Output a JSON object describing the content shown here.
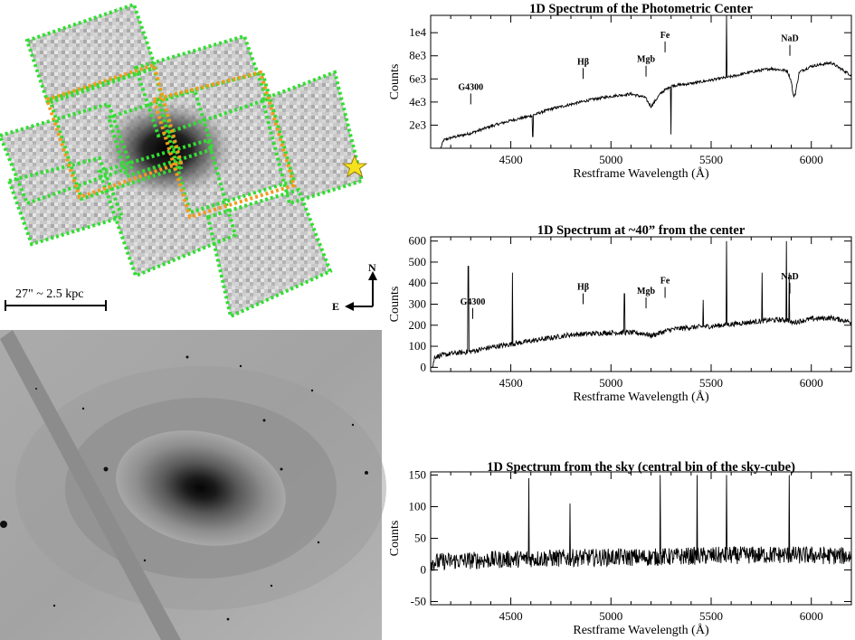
{
  "left_panel": {
    "scale_bar_label": "27\" ~ 2.5 kpc",
    "compass_north": "N",
    "compass_east": "E",
    "star_icon": "star-icon"
  },
  "chart_data": [
    {
      "type": "line",
      "title": "1D Spectrum of the Photometric Center",
      "xlabel": "Restframe Wavelength (Å)",
      "ylabel": "Counts",
      "xlim": [
        4100,
        6200
      ],
      "ylim": [
        0,
        11500
      ],
      "xticks": [
        4500,
        5000,
        5500,
        6000
      ],
      "yticks": [
        2000,
        4000,
        6000,
        8000,
        10000
      ],
      "ytick_labels": [
        "2e3",
        "4e3",
        "6e3",
        "8e3",
        "1e4"
      ],
      "noise_amplitude": 120,
      "continuum": [
        [
          4100,
          0
        ],
        [
          4150,
          0
        ],
        [
          4165,
          700
        ],
        [
          4200,
          900
        ],
        [
          4300,
          1300
        ],
        [
          4400,
          1900
        ],
        [
          4500,
          2400
        ],
        [
          4600,
          2800
        ],
        [
          4700,
          3400
        ],
        [
          4800,
          3800
        ],
        [
          4900,
          4200
        ],
        [
          5000,
          4500
        ],
        [
          5100,
          4700
        ],
        [
          5170,
          4400
        ],
        [
          5200,
          3600
        ],
        [
          5250,
          4800
        ],
        [
          5300,
          5400
        ],
        [
          5400,
          5600
        ],
        [
          5500,
          5900
        ],
        [
          5600,
          6200
        ],
        [
          5700,
          6600
        ],
        [
          5800,
          6900
        ],
        [
          5880,
          6700
        ],
        [
          5900,
          5800
        ],
        [
          5910,
          4500
        ],
        [
          5920,
          4700
        ],
        [
          5940,
          6600
        ],
        [
          6000,
          7100
        ],
        [
          6100,
          7400
        ],
        [
          6200,
          6300
        ]
      ],
      "emission_lines": [
        [
          5577,
          11500
        ],
        [
          4610,
          1000
        ],
        [
          5300,
          1200
        ]
      ],
      "annotations": [
        {
          "label": "G4300",
          "x": 4300,
          "y": 3800
        },
        {
          "label": "Hβ",
          "x": 4861,
          "y": 6000
        },
        {
          "label": "Mgb",
          "x": 5175,
          "y": 6200
        },
        {
          "label": "Fe",
          "x": 5270,
          "y": 8300
        },
        {
          "label": "NaD",
          "x": 5893,
          "y": 8000
        }
      ]
    },
    {
      "type": "line",
      "title": "1D Spectrum at ~40” from the center",
      "xlabel": "Restframe Wavelength (Å)",
      "ylabel": "Counts",
      "xlim": [
        4100,
        6200
      ],
      "ylim": [
        -20,
        620
      ],
      "xticks": [
        4500,
        5000,
        5500,
        6000
      ],
      "yticks": [
        0,
        100,
        200,
        300,
        400,
        500,
        600
      ],
      "ytick_labels": [
        "0",
        "100",
        "200",
        "300",
        "400",
        "500",
        "600"
      ],
      "noise_amplitude": 12,
      "continuum": [
        [
          4100,
          0
        ],
        [
          4110,
          0
        ],
        [
          4120,
          50
        ],
        [
          4200,
          65
        ],
        [
          4300,
          75
        ],
        [
          4400,
          95
        ],
        [
          4500,
          110
        ],
        [
          4600,
          125
        ],
        [
          4700,
          140
        ],
        [
          4800,
          155
        ],
        [
          4900,
          160
        ],
        [
          5000,
          165
        ],
        [
          5100,
          165
        ],
        [
          5170,
          160
        ],
        [
          5200,
          150
        ],
        [
          5250,
          165
        ],
        [
          5300,
          180
        ],
        [
          5400,
          190
        ],
        [
          5500,
          195
        ],
        [
          5600,
          205
        ],
        [
          5700,
          215
        ],
        [
          5800,
          225
        ],
        [
          5880,
          225
        ],
        [
          5900,
          210
        ],
        [
          5920,
          215
        ],
        [
          6000,
          230
        ],
        [
          6100,
          235
        ],
        [
          6200,
          215
        ]
      ],
      "emission_lines": [
        [
          4288,
          480
        ],
        [
          4508,
          450
        ],
        [
          5067,
          350
        ],
        [
          5460,
          320
        ],
        [
          5577,
          600
        ],
        [
          5755,
          450
        ],
        [
          5876,
          600
        ],
        [
          5890,
          450
        ]
      ],
      "annotations": [
        {
          "label": "G4300",
          "x": 4310,
          "y": 230
        },
        {
          "label": "Hβ",
          "x": 4861,
          "y": 300
        },
        {
          "label": "Mgb",
          "x": 5175,
          "y": 280
        },
        {
          "label": "Fe",
          "x": 5270,
          "y": 330
        },
        {
          "label": "NaD",
          "x": 5893,
          "y": 350
        }
      ]
    },
    {
      "type": "line",
      "title": "1D Spectrum from the sky (central bin of the sky-cube)",
      "xlabel": "Restframe Wavelength (Å)",
      "ylabel": "Counts",
      "xlim": [
        4100,
        6200
      ],
      "ylim": [
        -55,
        155
      ],
      "xticks": [
        4500,
        5000,
        5500,
        6000
      ],
      "yticks": [
        -50,
        0,
        50,
        100,
        150
      ],
      "ytick_labels": [
        "-50",
        "0",
        "50",
        "100",
        "150"
      ],
      "noise_amplitude": 14,
      "continuum": [
        [
          4100,
          12
        ],
        [
          4200,
          14
        ],
        [
          4400,
          16
        ],
        [
          4600,
          18
        ],
        [
          4800,
          19
        ],
        [
          5000,
          20
        ],
        [
          5200,
          20
        ],
        [
          5400,
          22
        ],
        [
          5600,
          23
        ],
        [
          5800,
          24
        ],
        [
          6000,
          23
        ],
        [
          6200,
          22
        ]
      ],
      "emission_lines": [
        [
          4590,
          145
        ],
        [
          4795,
          105
        ],
        [
          5245,
          150
        ],
        [
          5430,
          150
        ],
        [
          5577,
          150
        ],
        [
          5890,
          150
        ]
      ],
      "annotations": []
    }
  ]
}
